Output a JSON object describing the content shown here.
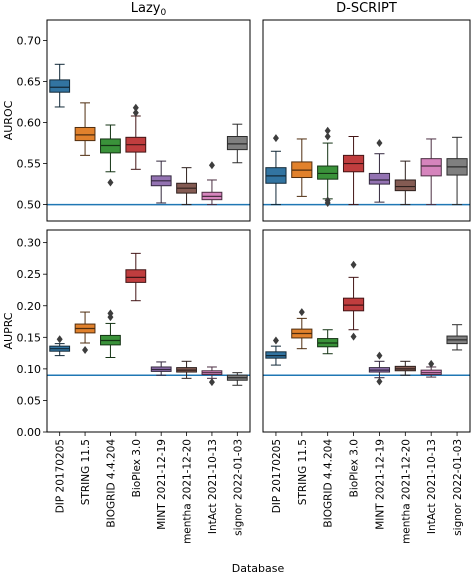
{
  "chart_data": [
    {
      "type": "box",
      "panel": "top-left",
      "title": "Lazy",
      "title_subscript": "0",
      "ylabel": "AUROC",
      "xlabel": "",
      "ylim": [
        0.48,
        0.725
      ],
      "yticks": [
        "0.50",
        "0.55",
        "0.60",
        "0.65",
        "0.70"
      ],
      "reference_line": 0.5,
      "boxes": [
        {
          "q1": 0.637,
          "median": 0.643,
          "q3": 0.652,
          "whislo": 0.619,
          "whishi": 0.671,
          "fliers": []
        },
        {
          "q1": 0.578,
          "median": 0.585,
          "q3": 0.594,
          "whislo": 0.56,
          "whishi": 0.624,
          "fliers": []
        },
        {
          "q1": 0.563,
          "median": 0.572,
          "q3": 0.58,
          "whislo": 0.54,
          "whishi": 0.597,
          "fliers": [
            0.527
          ]
        },
        {
          "q1": 0.564,
          "median": 0.573,
          "q3": 0.582,
          "whislo": 0.543,
          "whishi": 0.608,
          "fliers": [
            0.612,
            0.618
          ]
        },
        {
          "q1": 0.523,
          "median": 0.529,
          "q3": 0.535,
          "whislo": 0.502,
          "whishi": 0.553,
          "fliers": []
        },
        {
          "q1": 0.514,
          "median": 0.52,
          "q3": 0.526,
          "whislo": 0.5,
          "whishi": 0.545,
          "fliers": []
        },
        {
          "q1": 0.506,
          "median": 0.51,
          "q3": 0.515,
          "whislo": 0.5,
          "whishi": 0.53,
          "fliers": [
            0.548
          ]
        },
        {
          "q1": 0.567,
          "median": 0.574,
          "q3": 0.583,
          "whislo": 0.551,
          "whishi": 0.598,
          "fliers": []
        }
      ]
    },
    {
      "type": "box",
      "panel": "top-right",
      "title": "D-SCRIPT",
      "ylabel": "",
      "xlabel": "",
      "ylim": [
        0.48,
        0.725
      ],
      "yticks": [],
      "reference_line": 0.5,
      "boxes": [
        {
          "q1": 0.526,
          "median": 0.535,
          "q3": 0.545,
          "whislo": 0.5,
          "whishi": 0.565,
          "fliers": [
            0.581
          ]
        },
        {
          "q1": 0.533,
          "median": 0.542,
          "q3": 0.552,
          "whislo": 0.51,
          "whishi": 0.58,
          "fliers": []
        },
        {
          "q1": 0.531,
          "median": 0.538,
          "q3": 0.547,
          "whislo": 0.507,
          "whishi": 0.575,
          "fliers": [
            0.502,
            0.505,
            0.583,
            0.59
          ]
        },
        {
          "q1": 0.54,
          "median": 0.55,
          "q3": 0.56,
          "whislo": 0.5,
          "whishi": 0.583,
          "fliers": []
        },
        {
          "q1": 0.525,
          "median": 0.53,
          "q3": 0.538,
          "whislo": 0.503,
          "whishi": 0.562,
          "fliers": [
            0.575
          ]
        },
        {
          "q1": 0.517,
          "median": 0.522,
          "q3": 0.53,
          "whislo": 0.5,
          "whishi": 0.553,
          "fliers": []
        },
        {
          "q1": 0.535,
          "median": 0.547,
          "q3": 0.556,
          "whislo": 0.5,
          "whishi": 0.58,
          "fliers": []
        },
        {
          "q1": 0.536,
          "median": 0.546,
          "q3": 0.556,
          "whislo": 0.5,
          "whishi": 0.582,
          "fliers": []
        }
      ]
    },
    {
      "type": "box",
      "panel": "bottom-left",
      "title": "",
      "ylabel": "AUPRC",
      "xlabel": "",
      "ylim": [
        0.0,
        0.32
      ],
      "yticks": [
        "0.00",
        "0.05",
        "0.10",
        "0.15",
        "0.20",
        "0.25",
        "0.30"
      ],
      "reference_line": 0.09,
      "boxes": [
        {
          "q1": 0.128,
          "median": 0.132,
          "q3": 0.136,
          "whislo": 0.121,
          "whishi": 0.14,
          "fliers": [
            0.147
          ]
        },
        {
          "q1": 0.157,
          "median": 0.164,
          "q3": 0.171,
          "whislo": 0.141,
          "whishi": 0.19,
          "fliers": [
            0.13
          ]
        },
        {
          "q1": 0.138,
          "median": 0.145,
          "q3": 0.153,
          "whislo": 0.118,
          "whishi": 0.172,
          "fliers": [
            0.182,
            0.188
          ]
        },
        {
          "q1": 0.237,
          "median": 0.245,
          "q3": 0.257,
          "whislo": 0.208,
          "whishi": 0.283,
          "fliers": []
        },
        {
          "q1": 0.096,
          "median": 0.099,
          "q3": 0.103,
          "whislo": 0.09,
          "whishi": 0.111,
          "fliers": []
        },
        {
          "q1": 0.095,
          "median": 0.098,
          "q3": 0.102,
          "whislo": 0.085,
          "whishi": 0.112,
          "fliers": []
        },
        {
          "q1": 0.091,
          "median": 0.094,
          "q3": 0.097,
          "whislo": 0.085,
          "whishi": 0.103,
          "fliers": [
            0.079
          ]
        },
        {
          "q1": 0.082,
          "median": 0.086,
          "q3": 0.09,
          "whislo": 0.074,
          "whishi": 0.094,
          "fliers": []
        }
      ]
    },
    {
      "type": "box",
      "panel": "bottom-right",
      "title": "",
      "ylabel": "",
      "xlabel": "",
      "ylim": [
        0.0,
        0.32
      ],
      "yticks": [],
      "reference_line": 0.09,
      "boxes": [
        {
          "q1": 0.117,
          "median": 0.121,
          "q3": 0.127,
          "whislo": 0.106,
          "whishi": 0.136,
          "fliers": [
            0.145
          ]
        },
        {
          "q1": 0.149,
          "median": 0.156,
          "q3": 0.163,
          "whislo": 0.132,
          "whishi": 0.18,
          "fliers": [
            0.19
          ]
        },
        {
          "q1": 0.135,
          "median": 0.141,
          "q3": 0.148,
          "whislo": 0.124,
          "whishi": 0.162,
          "fliers": []
        },
        {
          "q1": 0.192,
          "median": 0.201,
          "q3": 0.212,
          "whislo": 0.162,
          "whishi": 0.245,
          "fliers": [
            0.151,
            0.265
          ]
        },
        {
          "q1": 0.095,
          "median": 0.098,
          "q3": 0.102,
          "whislo": 0.086,
          "whishi": 0.112,
          "fliers": [
            0.121,
            0.08
          ]
        },
        {
          "q1": 0.097,
          "median": 0.1,
          "q3": 0.104,
          "whislo": 0.09,
          "whishi": 0.112,
          "fliers": []
        },
        {
          "q1": 0.091,
          "median": 0.094,
          "q3": 0.098,
          "whislo": 0.087,
          "whishi": 0.103,
          "fliers": [
            0.108
          ]
        },
        {
          "q1": 0.14,
          "median": 0.146,
          "q3": 0.152,
          "whislo": 0.13,
          "whishi": 0.17,
          "fliers": []
        }
      ]
    }
  ],
  "categories": [
    "DIP 20170205",
    "STRING 11.5",
    "BIOGRID 4.4.204",
    "BioPlex 3.0",
    "MINT 2021-12-19",
    "mentha 2021-12-20",
    "IntAct 2021-10-13",
    "signor 2022-01-03"
  ],
  "box_colors": [
    "#3274a1",
    "#e1812c",
    "#3a923a",
    "#c03d3e",
    "#9372b2",
    "#845b53",
    "#d684bd",
    "#7f7f7f"
  ],
  "reference_line_color": "#1f77b4",
  "shared_xlabel": "Database"
}
